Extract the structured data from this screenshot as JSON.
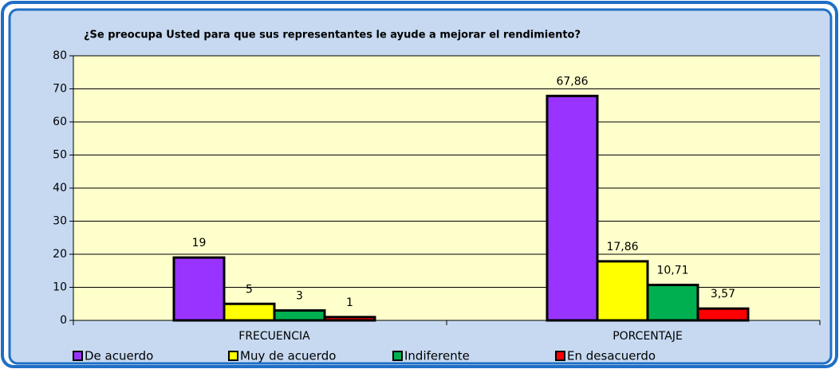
{
  "chart_data": {
    "type": "bar",
    "title": "¿Se preocupa Usted para que sus representantes le ayude a mejorar el rendimiento?",
    "categories": [
      "FRECUENCIA",
      "PORCENTAJE"
    ],
    "series": [
      {
        "name": "De acuerdo",
        "color": "#9933ff",
        "values": [
          19,
          67.86
        ],
        "value_labels": [
          "19",
          "67,86"
        ]
      },
      {
        "name": "Muy de acuerdo",
        "color": "#ffff00",
        "values": [
          5,
          17.86
        ],
        "value_labels": [
          "5",
          "17,86"
        ]
      },
      {
        "name": "Indiferente",
        "color": "#00b050",
        "values": [
          3,
          10.71
        ],
        "value_labels": [
          "3",
          "10,71"
        ]
      },
      {
        "name": "En desacuerdo",
        "color": "#ff0000",
        "values": [
          1,
          3.57
        ],
        "value_labels": [
          "1",
          "3,57"
        ]
      }
    ],
    "ylim": [
      0,
      80
    ],
    "yticks": [
      0,
      10,
      20,
      30,
      40,
      50,
      60,
      70,
      80
    ],
    "grid": true,
    "legend": "bottom"
  }
}
